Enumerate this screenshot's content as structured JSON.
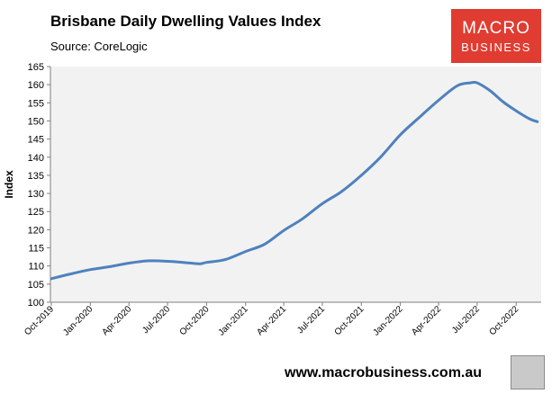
{
  "header": {
    "title": "Brisbane Daily Dwelling Values Index",
    "source": "Source: CoreLogic"
  },
  "logo": {
    "line1": "MACRO",
    "line2": "BUSINESS"
  },
  "footer": {
    "url": "www.macrobusiness.com.au"
  },
  "colors": {
    "series": "#4f81bd",
    "plot_background": "#f2f2f2",
    "logo_red": "#e03c31"
  },
  "chart_data": {
    "type": "line",
    "title": "Brisbane Daily Dwelling Values Index",
    "ylabel": "Index",
    "xlabel": "",
    "ylim": [
      100,
      165
    ],
    "yticks": [
      100,
      105,
      110,
      115,
      120,
      125,
      130,
      135,
      140,
      145,
      150,
      155,
      160,
      165
    ],
    "xticks": [
      "Oct-2019",
      "Jan-2020",
      "Apr-2020",
      "Jul-2020",
      "Oct-2020",
      "Jan-2021",
      "Apr-2021",
      "Jul-2021",
      "Oct-2021",
      "Jan-2022",
      "Apr-2022",
      "Jul-2022",
      "Oct-2022"
    ],
    "grid": false,
    "legend": "none",
    "series": [
      {
        "points": [
          [
            "2019-10-01",
            106.5
          ],
          [
            "2019-11-15",
            107.8
          ],
          [
            "2020-01-01",
            109.0
          ],
          [
            "2020-02-15",
            109.8
          ],
          [
            "2020-04-01",
            110.8
          ],
          [
            "2020-05-15",
            111.4
          ],
          [
            "2020-07-01",
            111.3
          ],
          [
            "2020-08-15",
            110.9
          ],
          [
            "2020-09-15",
            110.6
          ],
          [
            "2020-10-01",
            111.0
          ],
          [
            "2020-11-15",
            111.8
          ],
          [
            "2021-01-01",
            114.0
          ],
          [
            "2021-02-15",
            116.0
          ],
          [
            "2021-04-01",
            119.8
          ],
          [
            "2021-05-15",
            123.0
          ],
          [
            "2021-07-01",
            127.2
          ],
          [
            "2021-08-15",
            130.5
          ],
          [
            "2021-10-01",
            135.0
          ],
          [
            "2021-11-15",
            140.0
          ],
          [
            "2022-01-01",
            146.2
          ],
          [
            "2022-02-15",
            151.0
          ],
          [
            "2022-04-01",
            155.7
          ],
          [
            "2022-05-15",
            159.7
          ],
          [
            "2022-06-15",
            160.5
          ],
          [
            "2022-07-01",
            160.5
          ],
          [
            "2022-08-01",
            158.3
          ],
          [
            "2022-09-01",
            155.2
          ],
          [
            "2022-10-01",
            152.8
          ],
          [
            "2022-11-01",
            150.6
          ],
          [
            "2022-11-20",
            149.8
          ]
        ]
      }
    ]
  }
}
